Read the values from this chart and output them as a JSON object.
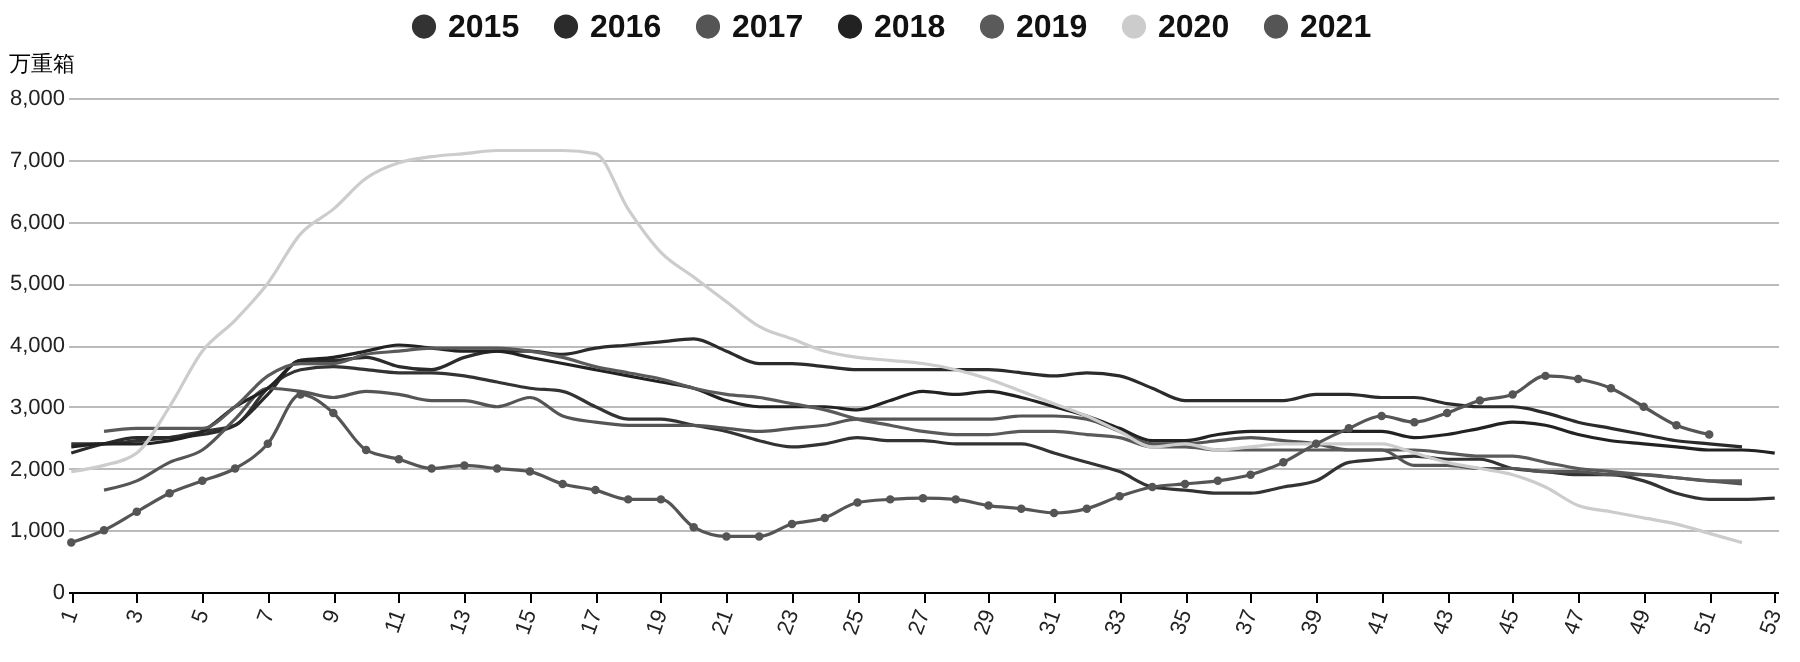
{
  "chart_data": {
    "type": "line",
    "ylabel": "万重箱",
    "categories": [
      "1",
      null,
      "3",
      null,
      "5",
      null,
      "7",
      null,
      "9",
      null,
      "11",
      null,
      "13",
      null,
      "15",
      null,
      "17",
      null,
      "19",
      null,
      "21",
      null,
      "23",
      null,
      "25",
      null,
      "27",
      null,
      "29",
      null,
      "31",
      null,
      "33",
      null,
      "35",
      null,
      "37",
      null,
      "39",
      null,
      "41",
      null,
      "43",
      null,
      "45",
      null,
      "47",
      null,
      "49",
      null,
      "51",
      null,
      "53"
    ],
    "ylim": [
      0,
      8000
    ],
    "yticks": [
      0,
      {
        "value": 1000,
        "label": "1,000"
      },
      {
        "value": 2000,
        "label": "2,000"
      },
      {
        "value": 3000,
        "label": "3,000"
      },
      {
        "value": 4000,
        "label": "4,000"
      },
      {
        "value": 5000,
        "label": "5,000"
      },
      {
        "value": 6000,
        "label": "6,000"
      },
      {
        "value": 7000,
        "label": "7,000"
      },
      {
        "value": 8000,
        "label": "8,000"
      }
    ],
    "grid": "y",
    "legend": "top",
    "series": [
      {
        "name": "2015",
        "color": "#333333",
        "values": [
          2400,
          2400,
          2450,
          2500,
          2600,
          2700,
          3300,
          3600,
          3650,
          3600,
          3550,
          3550,
          3500,
          3400,
          3300,
          3250,
          3000,
          2800,
          2800,
          2700,
          2600,
          2450,
          2350,
          2400,
          2500,
          2450,
          2450,
          2400,
          2400,
          2400,
          2250,
          2100,
          1950,
          1700,
          1650,
          1600,
          1600,
          1700,
          1800,
          2100,
          2150,
          2200,
          2150,
          2150,
          2000,
          1950,
          1900,
          1900,
          1800,
          1600,
          1500,
          1500,
          1520
        ]
      },
      {
        "name": "2016",
        "color": "#2b2b2b",
        "values": [
          2250,
          2400,
          2500,
          2500,
          2550,
          2700,
          3200,
          3750,
          3750,
          3800,
          3650,
          3600,
          3800,
          3900,
          3900,
          3850,
          3950,
          4000,
          4050,
          4100,
          3900,
          3700,
          3700,
          3650,
          3600,
          3600,
          3600,
          3600,
          3600,
          3550,
          3500,
          3550,
          3500,
          3300,
          3100,
          3100,
          3100,
          3100,
          3200,
          3200,
          3150,
          3150,
          3050,
          3000,
          3000,
          2900,
          2750,
          2650,
          2550,
          2450,
          2400,
          2350,
          null
        ]
      },
      {
        "name": "2017",
        "color": "#555555",
        "values": [
          null,
          1650,
          1800,
          2100,
          2300,
          2800,
          3300,
          3250,
          3150,
          3250,
          3200,
          3100,
          3100,
          3000,
          3150,
          2850,
          2750,
          2700,
          2700,
          2700,
          2650,
          2600,
          2650,
          2700,
          2800,
          2800,
          2800,
          2800,
          2800,
          2850,
          2850,
          2800,
          2600,
          2400,
          2400,
          2450,
          2500,
          2450,
          2400,
          2300,
          2300,
          2050,
          2050,
          2000,
          2000,
          1950,
          1950,
          1900,
          1900,
          1850,
          1800,
          1750,
          null
        ]
      },
      {
        "name": "2018",
        "color": "#222222",
        "values": [
          2350,
          2400,
          2400,
          2450,
          2600,
          3000,
          3300,
          3750,
          3800,
          3900,
          4000,
          3950,
          3900,
          3900,
          3800,
          3700,
          3600,
          3500,
          3400,
          3300,
          3100,
          3000,
          3000,
          3000,
          2950,
          3100,
          3250,
          3200,
          3250,
          3150,
          3000,
          2850,
          2650,
          2450,
          2450,
          2550,
          2600,
          2600,
          2600,
          2600,
          2600,
          2500,
          2550,
          2650,
          2750,
          2700,
          2550,
          2450,
          2400,
          2350,
          2300,
          2300,
          2250
        ]
      },
      {
        "name": "2019",
        "color": "#5a5a5a",
        "values": [
          null,
          2600,
          2650,
          2650,
          2650,
          3000,
          3500,
          3700,
          3700,
          3850,
          3900,
          3950,
          3950,
          3950,
          3900,
          3800,
          3650,
          3550,
          3450,
          3300,
          3200,
          3150,
          3050,
          2950,
          2800,
          2700,
          2600,
          2550,
          2550,
          2600,
          2600,
          2550,
          2500,
          2350,
          2350,
          2300,
          2300,
          2300,
          2300,
          2300,
          2300,
          2300,
          2250,
          2200,
          2200,
          2100,
          2000,
          1950,
          1900,
          1850,
          1800,
          1800,
          null
        ]
      },
      {
        "name": "2020",
        "color": "#cccccc",
        "values": [
          1950,
          2050,
          2250,
          3000,
          3900,
          4400,
          5000,
          5800,
          6200,
          6700,
          6950,
          7050,
          7100,
          7150,
          7150,
          7150,
          7100,
          6200,
          5500,
          5100,
          4700,
          4300,
          4100,
          3900,
          3800,
          3750,
          3700,
          3600,
          3450,
          3250,
          3050,
          2850,
          2600,
          2350,
          2400,
          2300,
          2350,
          2400,
          2400,
          2400,
          2400,
          2250,
          2100,
          2000,
          1900,
          1700,
          1400,
          1300,
          1200,
          1100,
          950,
          800,
          null
        ]
      },
      {
        "name": "2021",
        "color": "#555555",
        "marker": "circle",
        "values": [
          800,
          1000,
          1300,
          1600,
          1800,
          2000,
          2400,
          3200,
          2900,
          2300,
          2150,
          2000,
          2050,
          2000,
          1950,
          1750,
          1650,
          1500,
          1500,
          1050,
          900,
          900,
          1100,
          1200,
          1450,
          1500,
          1520,
          1500,
          1400,
          1350,
          1280,
          1350,
          1550,
          1700,
          1750,
          1800,
          1900,
          2100,
          2400,
          2650,
          2850,
          2750,
          2900,
          3100,
          3200,
          3500,
          3450,
          3300,
          3000,
          2700,
          2550,
          null,
          null
        ]
      }
    ]
  }
}
